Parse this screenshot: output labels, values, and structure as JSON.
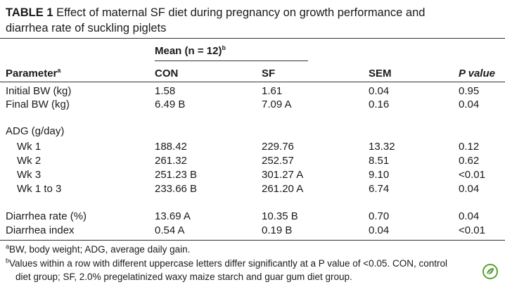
{
  "table": {
    "label": "TABLE 1",
    "title_text": "Effect of maternal SF diet during pregnancy on growth performance and",
    "title_text_2": "diarrhea rate of suckling piglets",
    "mean_header": "Mean (n = 12)",
    "mean_header_sup": "b",
    "columns": {
      "param": "Parameter",
      "param_sup": "a",
      "con": "CON",
      "sf": "SF",
      "sem": "SEM",
      "pvalue": "P value"
    },
    "rows": [
      {
        "param": "Initial BW (kg)",
        "con": "1.58",
        "sf": "1.61",
        "sem": "0.04",
        "p": "0.95"
      },
      {
        "param": "Final BW (kg)",
        "con": "6.49 B",
        "sf": "7.09 A",
        "sem": "0.16",
        "p": "0.04"
      },
      {
        "param": "ADG (g/day)",
        "con": "",
        "sf": "",
        "sem": "",
        "p": ""
      },
      {
        "param": "Wk 1",
        "con": "188.42",
        "sf": "229.76",
        "sem": "13.32",
        "p": "0.12"
      },
      {
        "param": "Wk 2",
        "con": "261.32",
        "sf": "252.57",
        "sem": "8.51",
        "p": "0.62"
      },
      {
        "param": "Wk 3",
        "con": "251.23 B",
        "sf": "301.27 A",
        "sem": "9.10",
        "p": "<0.01"
      },
      {
        "param": "Wk 1 to 3",
        "con": "233.66 B",
        "sf": "261.20 A",
        "sem": "6.74",
        "p": "0.04"
      },
      {
        "param": "Diarrhea rate (%)",
        "con": "13.69 A",
        "sf": "10.35 B",
        "sem": "0.70",
        "p": "0.04"
      },
      {
        "param": "Diarrhea index",
        "con": "0.54 A",
        "sf": "0.19 B",
        "sem": "0.04",
        "p": "<0.01"
      }
    ],
    "footnotes": {
      "a_sup": "a",
      "a_text": "BW, body weight; ADG, average daily gain.",
      "b_sup": "b",
      "b_text_1": "Values within a row with different uppercase letters differ significantly at a P value of <0.05. CON, control",
      "b_text_2": "diet group; SF, 2.0% pregelatinized waxy maize starch and guar gum diet group."
    }
  },
  "colors": {
    "rule": "#333333",
    "logo": "#5aa02c"
  },
  "logo_icon": "leaf-logo-icon"
}
